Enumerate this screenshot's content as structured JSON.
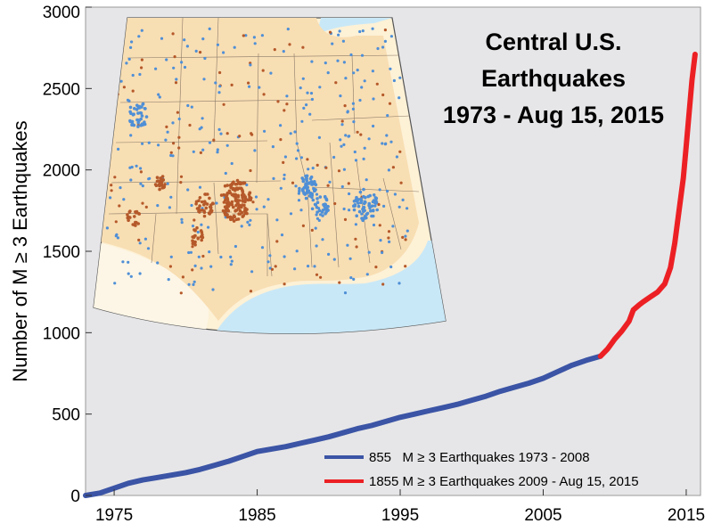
{
  "chart_data": {
    "type": "line",
    "title_lines": [
      "Central U.S.",
      "Earthquakes",
      "1973 - Aug 15, 2015"
    ],
    "xlabel": "",
    "ylabel": "Number of M ≥ 3 Earthquakes",
    "xlim": [
      1973,
      2016
    ],
    "ylim": [
      0,
      3000
    ],
    "x_ticks": [
      "1975",
      "1985",
      "1995",
      "2005",
      "2015"
    ],
    "y_ticks": [
      "0",
      "500",
      "1000",
      "1500",
      "2000",
      "2500",
      "3000"
    ],
    "grid": false,
    "legend_position": "bottom-right",
    "series": [
      {
        "name": "855   M ≥ 3 Earthquakes 1973 - 2008",
        "color": "#3b54a5",
        "x": [
          1973,
          1974,
          1975,
          1976,
          1977,
          1978,
          1979,
          1980,
          1981,
          1982,
          1983,
          1984,
          1985,
          1986,
          1987,
          1988,
          1989,
          1990,
          1991,
          1992,
          1993,
          1994,
          1995,
          1996,
          1997,
          1998,
          1999,
          2000,
          2001,
          2002,
          2003,
          2004,
          2005,
          2006,
          2007,
          2008,
          2009
        ],
        "y": [
          0,
          15,
          45,
          75,
          95,
          110,
          125,
          140,
          160,
          185,
          210,
          240,
          270,
          285,
          300,
          320,
          340,
          360,
          385,
          410,
          430,
          455,
          480,
          500,
          520,
          540,
          560,
          585,
          610,
          640,
          665,
          690,
          720,
          760,
          800,
          830,
          855
        ]
      },
      {
        "name": "1855 M ≥ 3 Earthquakes 2009 - Aug 15, 2015",
        "color": "#ec2024",
        "x": [
          2009,
          2009.5,
          2010,
          2010.5,
          2011,
          2011.3,
          2011.7,
          2012,
          2012.5,
          2013,
          2013.5,
          2013.9,
          2014.2,
          2014.5,
          2014.8,
          2015,
          2015.2,
          2015.4,
          2015.62
        ],
        "y": [
          855,
          900,
          960,
          1010,
          1070,
          1140,
          1170,
          1190,
          1220,
          1250,
          1300,
          1400,
          1550,
          1750,
          1950,
          2150,
          2350,
          2550,
          2710
        ]
      }
    ],
    "inset": {
      "description": "Central U.S. map with earthquake epicenters",
      "dot_colors": {
        "pre2009": "#4f8fd6",
        "post2009": "#b5592a"
      }
    }
  }
}
